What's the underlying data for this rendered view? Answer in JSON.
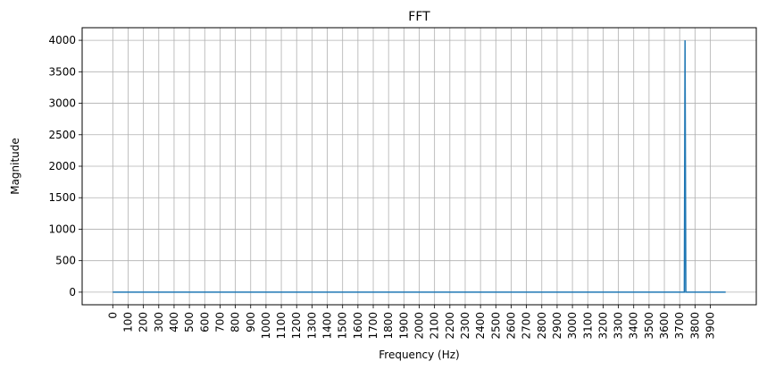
{
  "chart_data": {
    "type": "line",
    "title": "FFT",
    "xlabel": "Frequency (Hz)",
    "ylabel": "Magnitude",
    "xlim": [
      -200,
      4200
    ],
    "ylim": [
      -200,
      4200
    ],
    "grid": true,
    "x_ticks": [
      0,
      100,
      200,
      300,
      400,
      500,
      600,
      700,
      800,
      900,
      1000,
      1100,
      1200,
      1300,
      1400,
      1500,
      1600,
      1700,
      1800,
      1900,
      2000,
      2100,
      2200,
      2300,
      2400,
      2500,
      2600,
      2700,
      2800,
      2900,
      3000,
      3100,
      3200,
      3300,
      3400,
      3500,
      3600,
      3700,
      3800,
      3900
    ],
    "y_ticks": [
      0,
      500,
      1000,
      1500,
      2000,
      2500,
      3000,
      3500,
      4000
    ],
    "series": [
      {
        "color": "#1f77b4",
        "x": [
          0,
          3730,
          3735,
          3740,
          4000
        ],
        "y": [
          0,
          0,
          4000,
          0,
          0
        ]
      }
    ]
  }
}
